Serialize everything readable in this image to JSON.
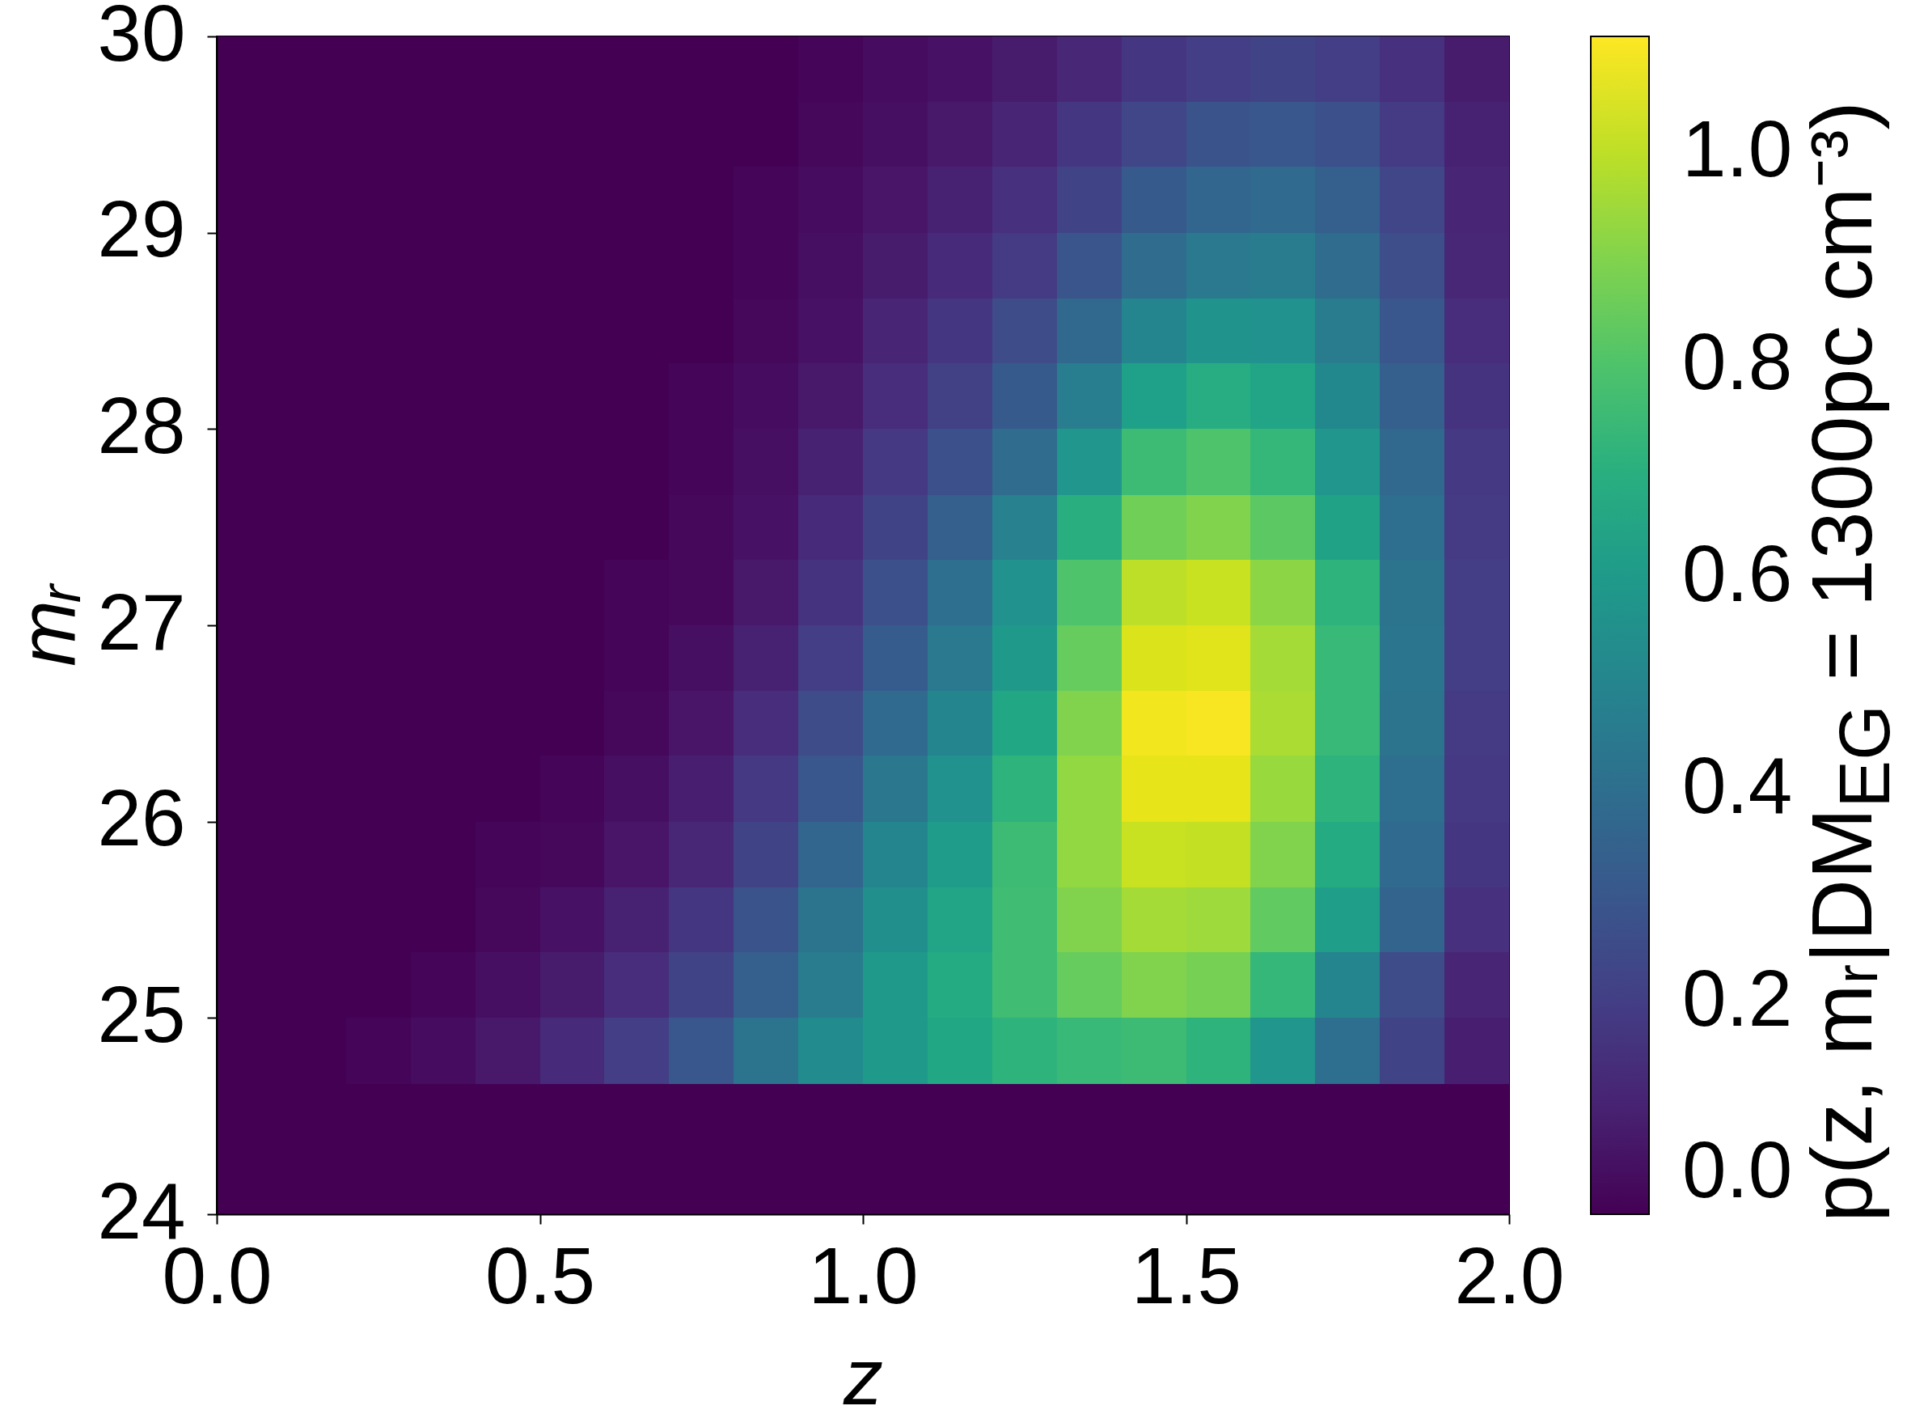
{
  "chart_data": {
    "type": "heatmap",
    "xlabel": "z",
    "ylabel": "mᵣ",
    "clabel": "p(z, mᵣ|DM$_{EG}$ = 1300pc cm⁻³)",
    "x": [
      0.05,
      0.15,
      0.25,
      0.35,
      0.45,
      0.55,
      0.65,
      0.75,
      0.85,
      0.95,
      1.05,
      1.15,
      1.25,
      1.35,
      1.45,
      1.55,
      1.65,
      1.75,
      1.85,
      1.95
    ],
    "y": [
      29.83,
      29.5,
      29.17,
      28.83,
      28.5,
      28.17,
      27.83,
      27.5,
      27.17,
      26.83,
      26.5,
      26.17,
      25.83,
      25.5,
      25.17,
      24.83,
      24.5,
      24.17
    ],
    "cells": [
      [
        0,
        0,
        0,
        0,
        0,
        0,
        0,
        0,
        0,
        0.01,
        0.03,
        0.05,
        0.08,
        0.12,
        0.17,
        0.2,
        0.22,
        0.2,
        0.15,
        0.08
      ],
      [
        0,
        0,
        0,
        0,
        0,
        0,
        0,
        0,
        0,
        0.02,
        0.04,
        0.07,
        0.11,
        0.17,
        0.23,
        0.28,
        0.3,
        0.27,
        0.19,
        0.1
      ],
      [
        0,
        0,
        0,
        0,
        0,
        0,
        0,
        0,
        0.01,
        0.03,
        0.06,
        0.1,
        0.15,
        0.22,
        0.31,
        0.36,
        0.38,
        0.33,
        0.23,
        0.11
      ],
      [
        0,
        0,
        0,
        0,
        0,
        0,
        0,
        0,
        0.01,
        0.04,
        0.08,
        0.13,
        0.19,
        0.29,
        0.39,
        0.45,
        0.46,
        0.39,
        0.26,
        0.12
      ],
      [
        0,
        0,
        0,
        0,
        0,
        0,
        0,
        0,
        0.02,
        0.05,
        0.11,
        0.17,
        0.25,
        0.37,
        0.5,
        0.57,
        0.56,
        0.46,
        0.3,
        0.14
      ],
      [
        0,
        0,
        0,
        0,
        0,
        0,
        0,
        0.01,
        0.03,
        0.07,
        0.14,
        0.21,
        0.31,
        0.47,
        0.63,
        0.69,
        0.65,
        0.52,
        0.33,
        0.16
      ],
      [
        0,
        0,
        0,
        0,
        0,
        0,
        0,
        0.01,
        0.04,
        0.1,
        0.18,
        0.27,
        0.39,
        0.58,
        0.76,
        0.8,
        0.74,
        0.58,
        0.37,
        0.18
      ],
      [
        0,
        0,
        0,
        0,
        0,
        0,
        0,
        0.02,
        0.05,
        0.13,
        0.22,
        0.33,
        0.48,
        0.7,
        0.87,
        0.9,
        0.83,
        0.64,
        0.4,
        0.19
      ],
      [
        0,
        0,
        0,
        0,
        0,
        0,
        0.01,
        0.02,
        0.07,
        0.16,
        0.27,
        0.4,
        0.56,
        0.8,
        1.0,
        1.02,
        0.92,
        0.72,
        0.42,
        0.2
      ],
      [
        0,
        0,
        0,
        0,
        0,
        0,
        0.01,
        0.04,
        0.1,
        0.2,
        0.32,
        0.45,
        0.6,
        0.85,
        1.05,
        1.06,
        0.96,
        0.75,
        0.43,
        0.2
      ],
      [
        0,
        0,
        0,
        0,
        0,
        0,
        0.02,
        0.06,
        0.14,
        0.25,
        0.38,
        0.5,
        0.66,
        0.9,
        1.09,
        1.1,
        0.97,
        0.75,
        0.42,
        0.19
      ],
      [
        0,
        0,
        0,
        0,
        0,
        0.01,
        0.04,
        0.09,
        0.18,
        0.3,
        0.44,
        0.56,
        0.72,
        0.93,
        1.07,
        1.07,
        0.94,
        0.72,
        0.4,
        0.18
      ],
      [
        0,
        0,
        0,
        0,
        0.01,
        0.02,
        0.06,
        0.12,
        0.22,
        0.36,
        0.5,
        0.61,
        0.76,
        0.93,
        1.02,
        1.01,
        0.9,
        0.68,
        0.38,
        0.17
      ],
      [
        0,
        0,
        0,
        0,
        0.02,
        0.05,
        0.1,
        0.17,
        0.28,
        0.42,
        0.55,
        0.65,
        0.77,
        0.9,
        0.96,
        0.95,
        0.84,
        0.62,
        0.35,
        0.15
      ],
      [
        0,
        0,
        0,
        0.01,
        0.04,
        0.08,
        0.14,
        0.22,
        0.33,
        0.46,
        0.6,
        0.68,
        0.77,
        0.85,
        0.9,
        0.88,
        0.74,
        0.5,
        0.25,
        0.11
      ],
      [
        0,
        0,
        0.01,
        0.03,
        0.07,
        0.13,
        0.2,
        0.3,
        0.42,
        0.53,
        0.6,
        0.66,
        0.72,
        0.75,
        0.76,
        0.72,
        0.58,
        0.4,
        0.22,
        0.09
      ],
      [
        0,
        0,
        0,
        0,
        0,
        0,
        0,
        0,
        0,
        0,
        0,
        0,
        0,
        0,
        0,
        0,
        0,
        0,
        0,
        0
      ],
      [
        0,
        0,
        0,
        0,
        0,
        0,
        0,
        0,
        0,
        0,
        0,
        0,
        0,
        0,
        0,
        0,
        0,
        0,
        0,
        0
      ]
    ],
    "xlim": [
      0,
      2
    ],
    "xticks": [
      {
        "value": 0,
        "label": "0.0"
      },
      0.5,
      {
        "value": 1,
        "label": "1.0"
      },
      1.5,
      {
        "value": 2,
        "label": "2.0"
      }
    ],
    "ylim": [
      24,
      30
    ],
    "yticks": [
      24,
      25,
      26,
      27,
      28,
      29,
      30
    ],
    "clim": [
      0,
      1.11
    ],
    "cticks": [
      {
        "value": 0,
        "label": "0.0"
      },
      0.2,
      0.4,
      0.6,
      0.8,
      {
        "value": 1,
        "label": "1.0"
      }
    ]
  }
}
